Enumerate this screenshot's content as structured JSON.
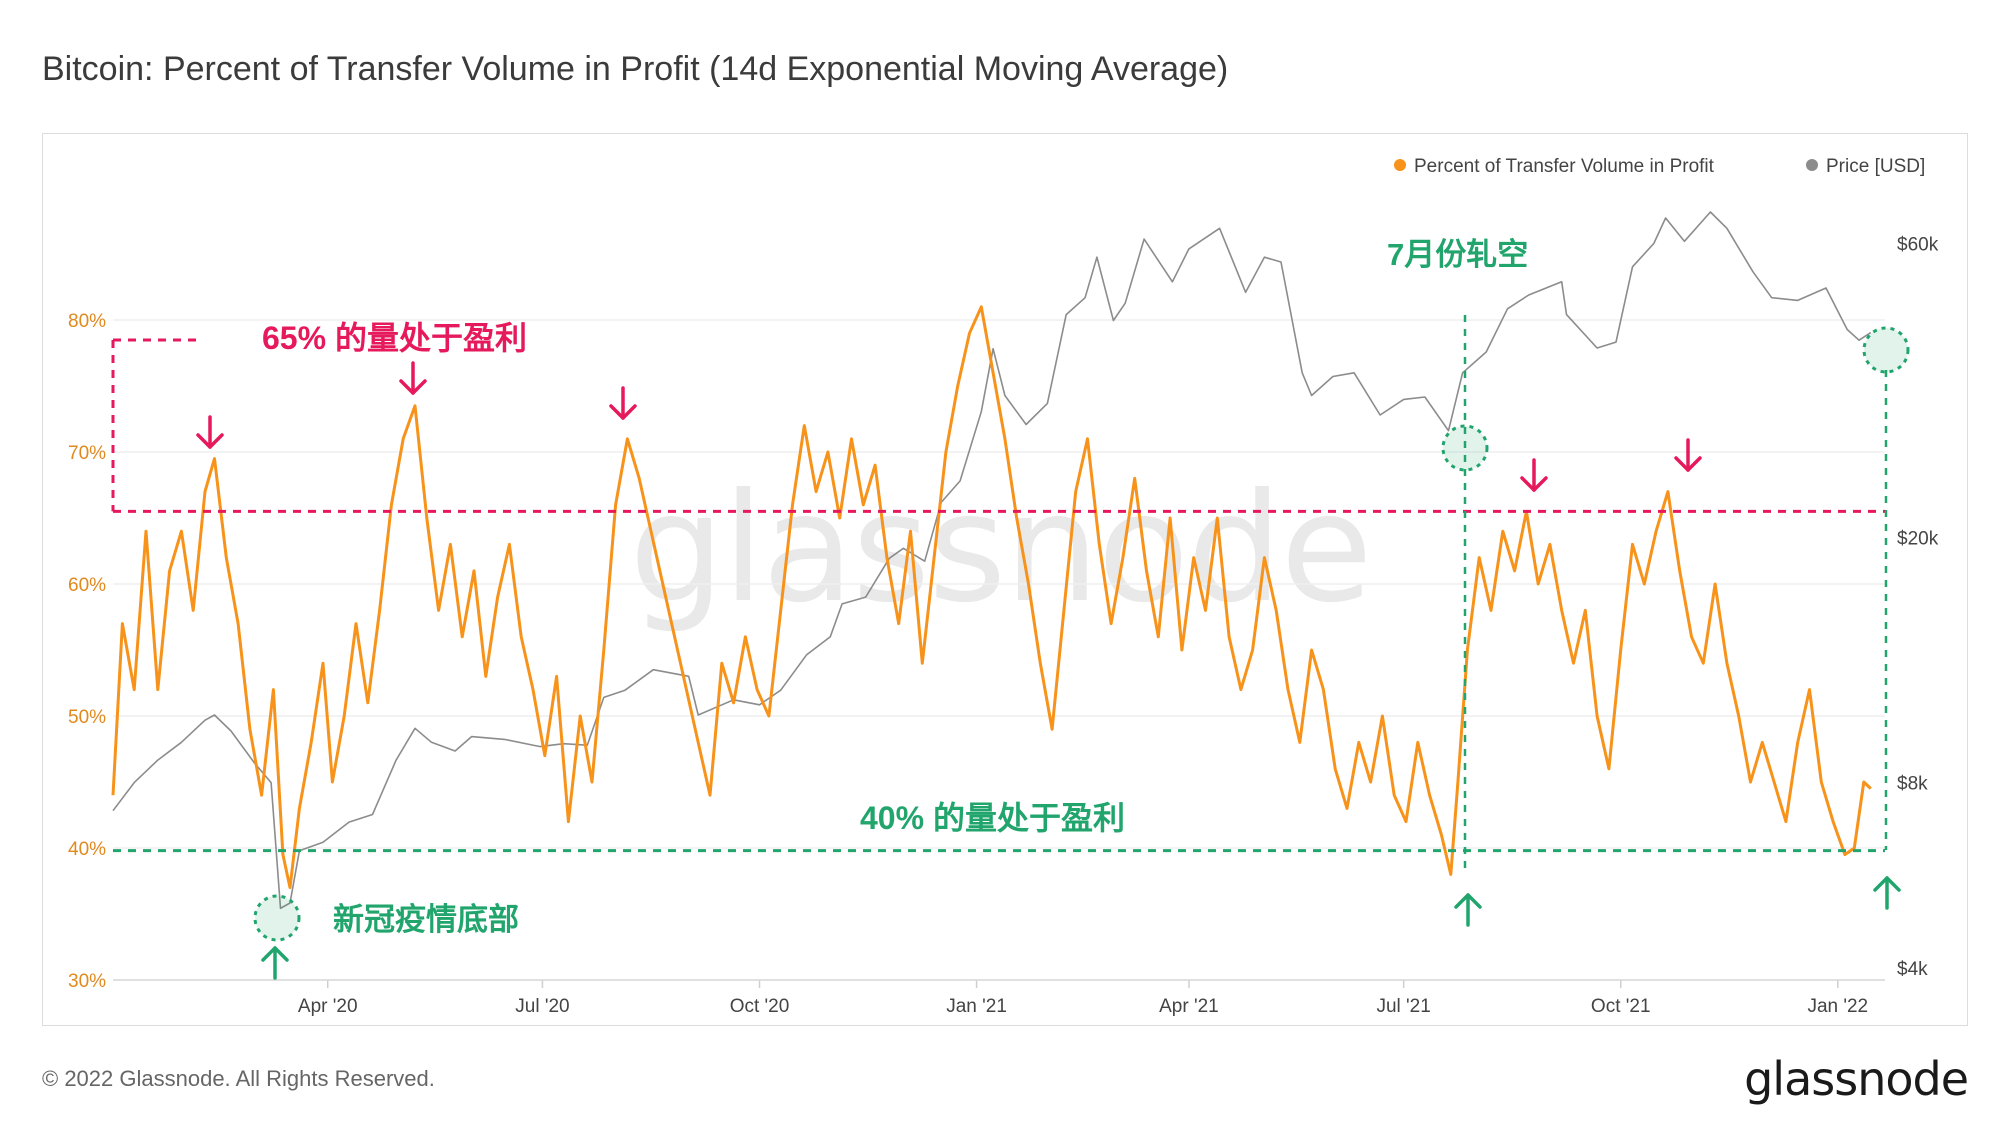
{
  "title": "Bitcoin: Percent of Transfer Volume in Profit (14d Exponential Moving Average)",
  "watermark": "glassnode",
  "footer": "© 2022 Glassnode. All Rights Reserved.",
  "brand": "glassnode",
  "colors": {
    "profit": "#f7931a",
    "price": "#8c8c8c",
    "red": "#e6195d",
    "green": "#21a56d",
    "axisLeft": "#e08a1e"
  },
  "chart_data": {
    "type": "line",
    "x_range": [
      "2020-01-01",
      "2022-01-21"
    ],
    "x_ticks": [
      "Apr '20",
      "Jul '20",
      "Oct '20",
      "Jan '21",
      "Apr '21",
      "Jul '21",
      "Oct '21",
      "Jan '22"
    ],
    "y_left": {
      "ticks": [
        "30%",
        "40%",
        "50%",
        "60%",
        "70%",
        "80%"
      ],
      "ylim": [
        30,
        81
      ]
    },
    "y_right": {
      "ticks": [
        "$4k",
        "$8k",
        "$20k",
        "$60k"
      ],
      "scale": "log",
      "ylim": [
        4000,
        66000
      ]
    },
    "legend": [
      "Percent of Transfer Volume in Profit",
      "Price [USD]"
    ],
    "series": [
      {
        "name": "Percent of Transfer Volume in Profit",
        "axis": "left",
        "points": [
          [
            "2020-01-01",
            44
          ],
          [
            "2020-01-05",
            57
          ],
          [
            "2020-01-10",
            52
          ],
          [
            "2020-01-15",
            64
          ],
          [
            "2020-01-20",
            52
          ],
          [
            "2020-01-25",
            61
          ],
          [
            "2020-01-30",
            64
          ],
          [
            "2020-02-04",
            58
          ],
          [
            "2020-02-09",
            67
          ],
          [
            "2020-02-13",
            69.5
          ],
          [
            "2020-02-18",
            62
          ],
          [
            "2020-02-23",
            57
          ],
          [
            "2020-02-28",
            49
          ],
          [
            "2020-03-04",
            44
          ],
          [
            "2020-03-09",
            52
          ],
          [
            "2020-03-13",
            39.5
          ],
          [
            "2020-03-16",
            37
          ],
          [
            "2020-03-20",
            43
          ],
          [
            "2020-03-25",
            48
          ],
          [
            "2020-03-30",
            54
          ],
          [
            "2020-04-03",
            45
          ],
          [
            "2020-04-08",
            50
          ],
          [
            "2020-04-13",
            57
          ],
          [
            "2020-04-18",
            51
          ],
          [
            "2020-04-23",
            58
          ],
          [
            "2020-04-28",
            66
          ],
          [
            "2020-05-03",
            71
          ],
          [
            "2020-05-08",
            73.5
          ],
          [
            "2020-05-13",
            65
          ],
          [
            "2020-05-18",
            58
          ],
          [
            "2020-05-23",
            63
          ],
          [
            "2020-05-28",
            56
          ],
          [
            "2020-06-02",
            61
          ],
          [
            "2020-06-07",
            53
          ],
          [
            "2020-06-12",
            59
          ],
          [
            "2020-06-17",
            63
          ],
          [
            "2020-06-22",
            56
          ],
          [
            "2020-06-27",
            52
          ],
          [
            "2020-07-02",
            47
          ],
          [
            "2020-07-07",
            53
          ],
          [
            "2020-07-12",
            42
          ],
          [
            "2020-07-17",
            50
          ],
          [
            "2020-07-22",
            45
          ],
          [
            "2020-07-27",
            55
          ],
          [
            "2020-08-01",
            66
          ],
          [
            "2020-08-06",
            71
          ],
          [
            "2020-08-11",
            68
          ],
          [
            "2020-08-16",
            64
          ],
          [
            "2020-08-21",
            60
          ],
          [
            "2020-08-26",
            56
          ],
          [
            "2020-08-31",
            52
          ],
          [
            "2020-09-05",
            48
          ],
          [
            "2020-09-10",
            44
          ],
          [
            "2020-09-15",
            54
          ],
          [
            "2020-09-20",
            51
          ],
          [
            "2020-09-25",
            56
          ],
          [
            "2020-09-30",
            52
          ],
          [
            "2020-10-05",
            50
          ],
          [
            "2020-10-10",
            58
          ],
          [
            "2020-10-15",
            66
          ],
          [
            "2020-10-20",
            72
          ],
          [
            "2020-10-25",
            67
          ],
          [
            "2020-10-30",
            70
          ],
          [
            "2020-11-04",
            65
          ],
          [
            "2020-11-09",
            71
          ],
          [
            "2020-11-14",
            66
          ],
          [
            "2020-11-19",
            69
          ],
          [
            "2020-11-24",
            62
          ],
          [
            "2020-11-29",
            57
          ],
          [
            "2020-12-04",
            64
          ],
          [
            "2020-12-09",
            54
          ],
          [
            "2020-12-14",
            62
          ],
          [
            "2020-12-19",
            70
          ],
          [
            "2020-12-24",
            75
          ],
          [
            "2020-12-29",
            79
          ],
          [
            "2021-01-03",
            81
          ],
          [
            "2021-01-08",
            76
          ],
          [
            "2021-01-13",
            71
          ],
          [
            "2021-01-18",
            65
          ],
          [
            "2021-01-23",
            60
          ],
          [
            "2021-01-28",
            54
          ],
          [
            "2021-02-02",
            49
          ],
          [
            "2021-02-07",
            58
          ],
          [
            "2021-02-12",
            67
          ],
          [
            "2021-02-17",
            71
          ],
          [
            "2021-02-22",
            63
          ],
          [
            "2021-02-27",
            57
          ],
          [
            "2021-03-04",
            62
          ],
          [
            "2021-03-09",
            68
          ],
          [
            "2021-03-14",
            61
          ],
          [
            "2021-03-19",
            56
          ],
          [
            "2021-03-24",
            65
          ],
          [
            "2021-03-29",
            55
          ],
          [
            "2021-04-03",
            62
          ],
          [
            "2021-04-08",
            58
          ],
          [
            "2021-04-13",
            65
          ],
          [
            "2021-04-18",
            56
          ],
          [
            "2021-04-23",
            52
          ],
          [
            "2021-04-28",
            55
          ],
          [
            "2021-05-03",
            62
          ],
          [
            "2021-05-08",
            58
          ],
          [
            "2021-05-13",
            52
          ],
          [
            "2021-05-18",
            48
          ],
          [
            "2021-05-23",
            55
          ],
          [
            "2021-05-28",
            52
          ],
          [
            "2021-06-02",
            46
          ],
          [
            "2021-06-07",
            43
          ],
          [
            "2021-06-12",
            48
          ],
          [
            "2021-06-17",
            45
          ],
          [
            "2021-06-22",
            50
          ],
          [
            "2021-06-27",
            44
          ],
          [
            "2021-07-02",
            42
          ],
          [
            "2021-07-07",
            48
          ],
          [
            "2021-07-12",
            44
          ],
          [
            "2021-07-17",
            41
          ],
          [
            "2021-07-21",
            38
          ],
          [
            "2021-07-24",
            45
          ],
          [
            "2021-07-28",
            55
          ],
          [
            "2021-08-02",
            62
          ],
          [
            "2021-08-07",
            58
          ],
          [
            "2021-08-12",
            64
          ],
          [
            "2021-08-17",
            61
          ],
          [
            "2021-08-22",
            65.5
          ],
          [
            "2021-08-27",
            60
          ],
          [
            "2021-09-01",
            63
          ],
          [
            "2021-09-06",
            58
          ],
          [
            "2021-09-11",
            54
          ],
          [
            "2021-09-16",
            58
          ],
          [
            "2021-09-21",
            50
          ],
          [
            "2021-09-26",
            46
          ],
          [
            "2021-10-01",
            55
          ],
          [
            "2021-10-06",
            63
          ],
          [
            "2021-10-11",
            60
          ],
          [
            "2021-10-16",
            64
          ],
          [
            "2021-10-21",
            67
          ],
          [
            "2021-10-26",
            61
          ],
          [
            "2021-10-31",
            56
          ],
          [
            "2021-11-05",
            54
          ],
          [
            "2021-11-10",
            60
          ],
          [
            "2021-11-15",
            54
          ],
          [
            "2021-11-20",
            50
          ],
          [
            "2021-11-25",
            45
          ],
          [
            "2021-11-30",
            48
          ],
          [
            "2021-12-05",
            45
          ],
          [
            "2021-12-10",
            42
          ],
          [
            "2021-12-15",
            48
          ],
          [
            "2021-12-20",
            52
          ],
          [
            "2021-12-25",
            45
          ],
          [
            "2021-12-30",
            42
          ],
          [
            "2022-01-04",
            39.5
          ],
          [
            "2022-01-08",
            40
          ],
          [
            "2022-01-12",
            45
          ],
          [
            "2022-01-15",
            44.5
          ]
        ]
      },
      {
        "name": "Price [USD]",
        "axis": "right",
        "points": [
          [
            "2020-01-01",
            7200
          ],
          [
            "2020-01-10",
            8000
          ],
          [
            "2020-01-20",
            8700
          ],
          [
            "2020-01-30",
            9300
          ],
          [
            "2020-02-09",
            10100
          ],
          [
            "2020-02-13",
            10300
          ],
          [
            "2020-02-20",
            9700
          ],
          [
            "2020-03-01",
            8600
          ],
          [
            "2020-03-08",
            8000
          ],
          [
            "2020-03-12",
            5000
          ],
          [
            "2020-03-16",
            5100
          ],
          [
            "2020-03-20",
            6200
          ],
          [
            "2020-03-30",
            6400
          ],
          [
            "2020-04-10",
            6900
          ],
          [
            "2020-04-20",
            7100
          ],
          [
            "2020-04-30",
            8700
          ],
          [
            "2020-05-08",
            9800
          ],
          [
            "2020-05-15",
            9300
          ],
          [
            "2020-05-25",
            9000
          ],
          [
            "2020-06-01",
            9500
          ],
          [
            "2020-06-15",
            9400
          ],
          [
            "2020-06-30",
            9150
          ],
          [
            "2020-07-10",
            9250
          ],
          [
            "2020-07-20",
            9200
          ],
          [
            "2020-07-27",
            11000
          ],
          [
            "2020-08-05",
            11300
          ],
          [
            "2020-08-17",
            12200
          ],
          [
            "2020-09-01",
            11900
          ],
          [
            "2020-09-05",
            10300
          ],
          [
            "2020-09-20",
            10900
          ],
          [
            "2020-10-01",
            10700
          ],
          [
            "2020-10-10",
            11300
          ],
          [
            "2020-10-21",
            12900
          ],
          [
            "2020-10-31",
            13800
          ],
          [
            "2020-11-05",
            15600
          ],
          [
            "2020-11-15",
            16000
          ],
          [
            "2020-11-25",
            18500
          ],
          [
            "2020-12-01",
            19200
          ],
          [
            "2020-12-10",
            18300
          ],
          [
            "2020-12-17",
            22800
          ],
          [
            "2020-12-25",
            24700
          ],
          [
            "2021-01-03",
            32000
          ],
          [
            "2021-01-08",
            40500
          ],
          [
            "2021-01-13",
            34000
          ],
          [
            "2021-01-22",
            30500
          ],
          [
            "2021-01-31",
            33000
          ],
          [
            "2021-02-08",
            46000
          ],
          [
            "2021-02-16",
            49000
          ],
          [
            "2021-02-21",
            57000
          ],
          [
            "2021-02-28",
            45000
          ],
          [
            "2021-03-05",
            48000
          ],
          [
            "2021-03-13",
            61000
          ],
          [
            "2021-03-25",
            52000
          ],
          [
            "2021-04-01",
            58800
          ],
          [
            "2021-04-14",
            63500
          ],
          [
            "2021-04-25",
            50000
          ],
          [
            "2021-05-03",
            57000
          ],
          [
            "2021-05-10",
            56000
          ],
          [
            "2021-05-19",
            37000
          ],
          [
            "2021-05-23",
            34000
          ],
          [
            "2021-06-01",
            36500
          ],
          [
            "2021-06-10",
            37000
          ],
          [
            "2021-06-21",
            31600
          ],
          [
            "2021-07-01",
            33500
          ],
          [
            "2021-07-10",
            33800
          ],
          [
            "2021-07-20",
            29800
          ],
          [
            "2021-07-26",
            37000
          ],
          [
            "2021-08-05",
            40000
          ],
          [
            "2021-08-14",
            47000
          ],
          [
            "2021-08-23",
            49500
          ],
          [
            "2021-09-06",
            52000
          ],
          [
            "2021-09-08",
            46000
          ],
          [
            "2021-09-21",
            40600
          ],
          [
            "2021-09-29",
            41500
          ],
          [
            "2021-10-06",
            55000
          ],
          [
            "2021-10-15",
            60000
          ],
          [
            "2021-10-20",
            66000
          ],
          [
            "2021-10-28",
            60500
          ],
          [
            "2021-11-08",
            67500
          ],
          [
            "2021-11-15",
            63500
          ],
          [
            "2021-11-26",
            54000
          ],
          [
            "2021-12-04",
            49000
          ],
          [
            "2021-12-15",
            48500
          ],
          [
            "2021-12-27",
            50800
          ],
          [
            "2022-01-05",
            43500
          ],
          [
            "2022-01-10",
            41800
          ],
          [
            "2022-01-15",
            43000
          ]
        ]
      }
    ],
    "reference_lines": [
      {
        "value": 65.5,
        "axis": "left",
        "color": "red",
        "label": "65% 的量处于盈利"
      },
      {
        "value": 39.8,
        "axis": "left",
        "color": "green",
        "label": "40% 的量处于盈利"
      }
    ],
    "annotations": [
      {
        "text": "新冠疫情底部",
        "date": "2020-03-12",
        "color": "green"
      },
      {
        "text": "7月份轧空",
        "date": "2021-07-21",
        "color": "green"
      }
    ]
  }
}
